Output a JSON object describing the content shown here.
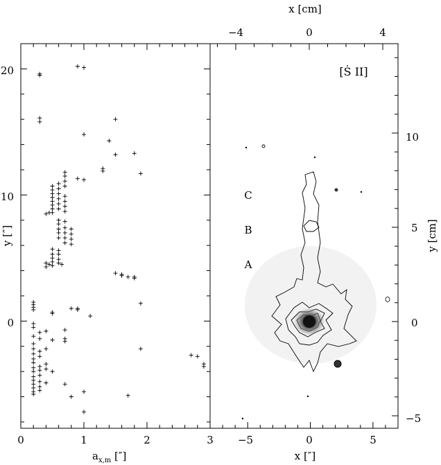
{
  "chart_data": [
    {
      "type": "scatter",
      "panel": "left",
      "xlabel": "a_x,m [″]",
      "ylabel": "y [″]",
      "xlim": [
        0,
        3
      ],
      "ylim": [
        -8.5,
        22
      ],
      "xticks": [
        "0",
        "1",
        "2",
        "3"
      ],
      "yticks": [
        "0",
        "10",
        "20"
      ],
      "marker": "plus",
      "points": [
        [
          0.3,
          19.6
        ],
        [
          0.3,
          19.5
        ],
        [
          0.9,
          20.2
        ],
        [
          1.0,
          20.1
        ],
        [
          0.3,
          16.1
        ],
        [
          0.3,
          15.8
        ],
        [
          1.5,
          16.0
        ],
        [
          1.0,
          14.8
        ],
        [
          1.4,
          14.3
        ],
        [
          1.5,
          13.2
        ],
        [
          1.8,
          13.3
        ],
        [
          1.3,
          12.1
        ],
        [
          1.3,
          11.9
        ],
        [
          1.9,
          11.7
        ],
        [
          0.9,
          11.3
        ],
        [
          1.0,
          11.2
        ],
        [
          0.7,
          11.8
        ],
        [
          0.7,
          11.5
        ],
        [
          0.7,
          11.1
        ],
        [
          0.7,
          10.7
        ],
        [
          0.6,
          10.9
        ],
        [
          0.6,
          10.5
        ],
        [
          0.5,
          10.7
        ],
        [
          0.5,
          10.4
        ],
        [
          0.5,
          10.1
        ],
        [
          0.5,
          9.8
        ],
        [
          0.5,
          9.5
        ],
        [
          0.5,
          9.2
        ],
        [
          0.5,
          8.9
        ],
        [
          0.5,
          8.6
        ],
        [
          0.6,
          10.1
        ],
        [
          0.6,
          9.7
        ],
        [
          0.6,
          9.3
        ],
        [
          0.6,
          8.9
        ],
        [
          0.7,
          9.9
        ],
        [
          0.7,
          9.5
        ],
        [
          0.7,
          9.1
        ],
        [
          0.7,
          8.7
        ],
        [
          0.4,
          8.5
        ],
        [
          0.45,
          8.6
        ],
        [
          0.6,
          8.0
        ],
        [
          0.6,
          7.7
        ],
        [
          0.6,
          7.3
        ],
        [
          0.6,
          7.0
        ],
        [
          0.6,
          6.6
        ],
        [
          0.7,
          7.9
        ],
        [
          0.7,
          7.4
        ],
        [
          0.7,
          7.0
        ],
        [
          0.7,
          6.6
        ],
        [
          0.7,
          6.2
        ],
        [
          0.8,
          7.3
        ],
        [
          0.8,
          6.9
        ],
        [
          0.8,
          6.5
        ],
        [
          0.8,
          6.1
        ],
        [
          0.5,
          5.7
        ],
        [
          0.5,
          5.3
        ],
        [
          0.5,
          5.0
        ],
        [
          0.5,
          4.7
        ],
        [
          0.5,
          4.4
        ],
        [
          0.6,
          5.6
        ],
        [
          0.6,
          5.3
        ],
        [
          0.6,
          4.9
        ],
        [
          0.4,
          4.6
        ],
        [
          0.4,
          4.3
        ],
        [
          0.45,
          4.5
        ],
        [
          0.6,
          4.6
        ],
        [
          0.65,
          4.5
        ],
        [
          1.5,
          3.8
        ],
        [
          1.6,
          3.7
        ],
        [
          1.6,
          3.6
        ],
        [
          1.7,
          3.5
        ],
        [
          1.8,
          3.5
        ],
        [
          1.8,
          3.4
        ],
        [
          0.2,
          1.5
        ],
        [
          0.2,
          1.3
        ],
        [
          0.2,
          1.1
        ],
        [
          0.2,
          0.9
        ],
        [
          1.9,
          1.4
        ],
        [
          0.5,
          0.7
        ],
        [
          0.5,
          0.6
        ],
        [
          0.8,
          1.0
        ],
        [
          0.9,
          1.0
        ],
        [
          0.9,
          0.9
        ],
        [
          1.1,
          0.4
        ],
        [
          0.2,
          -0.2
        ],
        [
          0.2,
          -0.5
        ],
        [
          0.3,
          -0.9
        ],
        [
          0.2,
          -1.2
        ],
        [
          0.3,
          -1.4
        ],
        [
          0.2,
          -1.8
        ],
        [
          0.2,
          -2.2
        ],
        [
          0.2,
          -2.6
        ],
        [
          0.3,
          -2.4
        ],
        [
          0.2,
          -3.0
        ],
        [
          0.3,
          -2.8
        ],
        [
          0.2,
          -3.3
        ],
        [
          0.2,
          -3.7
        ],
        [
          0.2,
          -4.0
        ],
        [
          0.3,
          -3.6
        ],
        [
          0.3,
          -3.9
        ],
        [
          0.3,
          -4.3
        ],
        [
          0.4,
          -3.4
        ],
        [
          0.2,
          -4.4
        ],
        [
          0.2,
          -4.7
        ],
        [
          0.2,
          -5.0
        ],
        [
          0.2,
          -5.3
        ],
        [
          0.2,
          -5.6
        ],
        [
          0.2,
          -5.8
        ],
        [
          0.3,
          -4.8
        ],
        [
          0.3,
          -5.2
        ],
        [
          0.3,
          -5.5
        ],
        [
          0.4,
          -4.9
        ],
        [
          0.4,
          -3.8
        ],
        [
          0.4,
          -2.2
        ],
        [
          0.5,
          -1.5
        ],
        [
          0.5,
          -4.0
        ],
        [
          0.4,
          -0.8
        ],
        [
          0.7,
          -0.7
        ],
        [
          0.7,
          -1.4
        ],
        [
          0.7,
          -1.6
        ],
        [
          0.7,
          -5.0
        ],
        [
          0.8,
          -6.0
        ],
        [
          1.0,
          -5.6
        ],
        [
          1.0,
          -7.2
        ],
        [
          1.7,
          -5.9
        ],
        [
          1.9,
          -2.2
        ],
        [
          2.7,
          -2.7
        ],
        [
          2.8,
          -2.8
        ],
        [
          2.9,
          -3.4
        ],
        [
          2.9,
          -3.6
        ]
      ]
    },
    {
      "type": "heatmap",
      "panel": "right",
      "label": "[Ṡ II]",
      "xlabel": "x [″]",
      "ylabel": "y [cm]",
      "top_xlabel": "x [cm]",
      "xlim": [
        -8,
        7
      ],
      "ylim": [
        -8.5,
        22
      ],
      "xticks": [
        "−5",
        "0",
        "5"
      ],
      "top_xticks": [
        "−4",
        "0",
        "4"
      ],
      "right_yticks": [
        "−5",
        "0",
        "5",
        "10"
      ],
      "knot_labels": [
        {
          "text": "A",
          "x": -5.0,
          "y": 4.6
        },
        {
          "text": "B",
          "x": -5.0,
          "y": 7.3
        },
        {
          "text": "C",
          "x": -5.0,
          "y": 10.1
        }
      ]
    }
  ]
}
